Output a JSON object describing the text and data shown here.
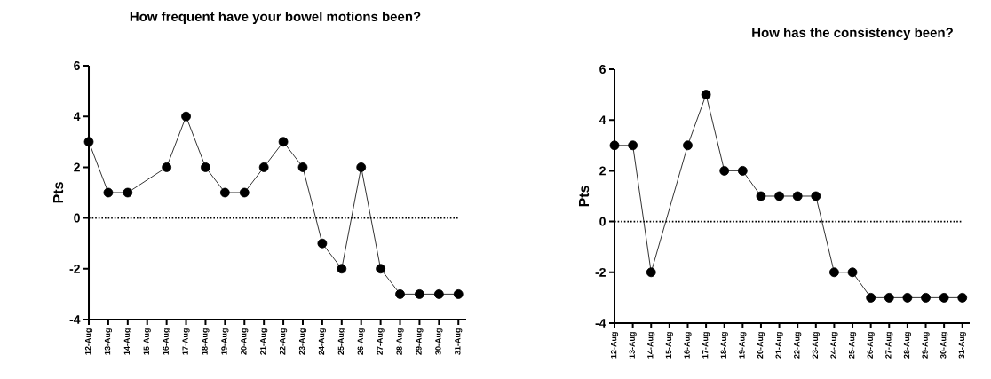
{
  "chart_data": [
    {
      "type": "line",
      "title": "How frequent have your bowel motions been?",
      "ylabel": "Pts",
      "categories": [
        "12-Aug",
        "13-Aug",
        "14-Aug",
        "15-Aug",
        "16-Aug",
        "17-Aug",
        "18-Aug",
        "19-Aug",
        "20-Aug",
        "21-Aug",
        "22-Aug",
        "23-Aug",
        "24-Aug",
        "25-Aug",
        "26-Aug",
        "27-Aug",
        "28-Aug",
        "29-Aug",
        "30-Aug",
        "31-Aug"
      ],
      "values": [
        3,
        1,
        1,
        null,
        2,
        4,
        2,
        1,
        1,
        2,
        3,
        2,
        -1,
        -2,
        2,
        -2,
        -3,
        -3,
        -3,
        -3
      ],
      "color": "#000000",
      "marker": "circle",
      "ylim": [
        -4,
        6
      ],
      "yticks": [
        -4,
        -2,
        0,
        2,
        4,
        6
      ],
      "ref_lines": [
        {
          "axis": "y",
          "value": 0,
          "line_style": "dotted"
        }
      ]
    },
    {
      "type": "line",
      "title": "How has the consistency been?",
      "ylabel": "Pts",
      "categories": [
        "12-Aug",
        "13-Aug",
        "14-Aug",
        "15-Aug",
        "16-Aug",
        "17-Aug",
        "18-Aug",
        "19-Aug",
        "20-Aug",
        "21-Aug",
        "22-Aug",
        "23-Aug",
        "24-Aug",
        "25-Aug",
        "26-Aug",
        "27-Aug",
        "28-Aug",
        "29-Aug",
        "30-Aug",
        "31-Aug"
      ],
      "values": [
        3,
        3,
        -2,
        null,
        3,
        5,
        2,
        2,
        1,
        1,
        1,
        1,
        -2,
        -2,
        -3,
        -3,
        -3,
        -3,
        -3,
        -3
      ],
      "color": "#000000",
      "marker": "circle",
      "ylim": [
        -4,
        6
      ],
      "yticks": [
        -4,
        -2,
        0,
        2,
        4,
        6
      ],
      "ref_lines": [
        {
          "axis": "y",
          "value": 0,
          "line_style": "dotted"
        }
      ]
    }
  ]
}
